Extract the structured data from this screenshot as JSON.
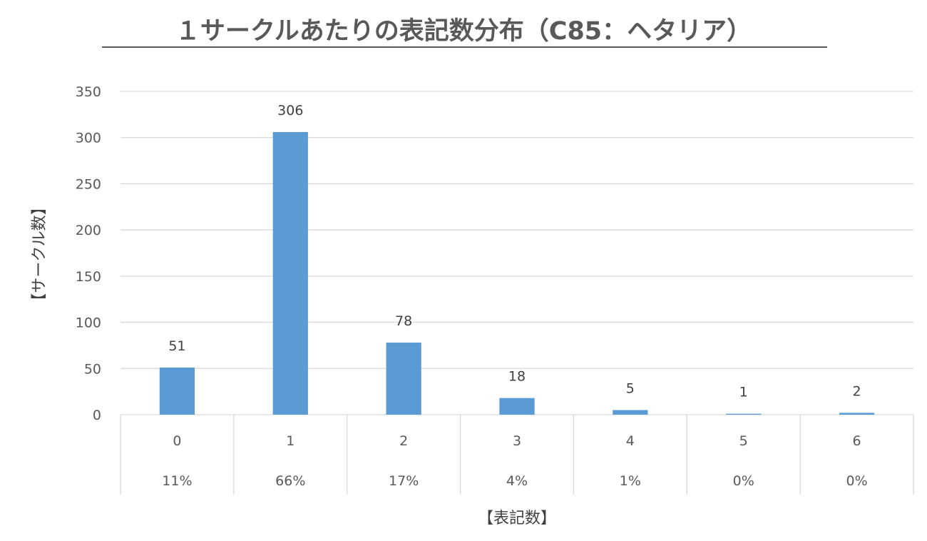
{
  "chart_data": {
    "type": "bar",
    "title": "１サークルあたりの表記数分布（C85：ヘタリア）",
    "xlabel": "【表記数】",
    "ylabel": "【サークル数】",
    "categories": [
      "0",
      "1",
      "2",
      "3",
      "4",
      "5",
      "6"
    ],
    "percent_labels": [
      "11%",
      "66%",
      "17%",
      "4%",
      "1%",
      "0%",
      "0%"
    ],
    "values": [
      51,
      306,
      78,
      18,
      5,
      1,
      2
    ],
    "ylim": [
      0,
      350
    ],
    "yticks": [
      0,
      50,
      100,
      150,
      200,
      250,
      300,
      350
    ],
    "grid": true,
    "data_labels": true,
    "colors": {
      "bar": "#5b9bd5",
      "grid": "#d9d9d9",
      "text": "#595959"
    }
  }
}
